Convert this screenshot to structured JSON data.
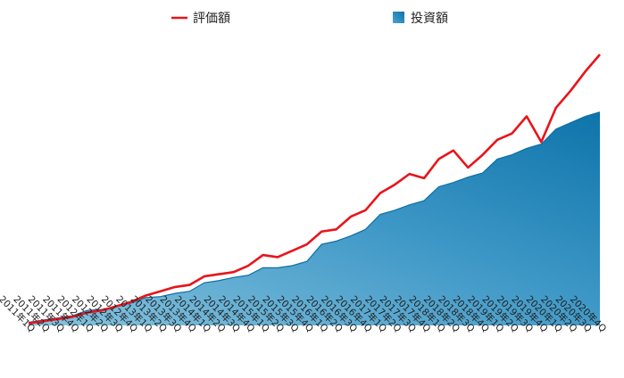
{
  "chart_data": {
    "type": "area",
    "title": "",
    "xlabel": "",
    "ylabel": "",
    "grid": false,
    "legend_position": "top-center",
    "categories": [
      "2011年1Q",
      "2011年2Q",
      "2011年3Q",
      "2011年4Q",
      "2012年1Q",
      "2012年2Q",
      "2012年3Q",
      "2012年4Q",
      "2013年1Q",
      "2013年2Q",
      "2013年3Q",
      "2013年4Q",
      "2014年1Q",
      "2014年2Q",
      "2014年3Q",
      "2014年4Q",
      "2015年1Q",
      "2015年2Q",
      "2015年3Q",
      "2015年4Q",
      "2016年1Q",
      "2016年2Q",
      "2016年3Q",
      "2016年4Q",
      "2017年1Q",
      "2017年2Q",
      "2017年3Q",
      "2017年4Q",
      "2018年1Q",
      "2018年2Q",
      "2018年3Q",
      "2018年4Q",
      "2019年1Q",
      "2019年2Q",
      "2019年3Q",
      "2019年4Q",
      "2020年1Q",
      "2020年2Q",
      "2020年3Q",
      "2020年4Q"
    ],
    "series": [
      {
        "name": "評価額",
        "type": "line",
        "color": "#e8141b",
        "values": [
          1,
          2,
          3,
          4,
          6,
          7,
          9,
          11,
          14,
          16,
          18,
          19,
          23,
          24,
          25,
          28,
          33,
          32,
          35,
          38,
          44,
          45,
          51,
          54,
          62,
          66,
          71,
          69,
          78,
          82,
          74,
          80,
          87,
          90,
          98,
          86,
          102,
          110,
          119,
          127
        ]
      },
      {
        "name": "投資額",
        "type": "area",
        "color": "#1a7fb8",
        "values": [
          1.5,
          2.5,
          3.5,
          4.5,
          7,
          7.5,
          9,
          10.5,
          13,
          13.5,
          15,
          16,
          20,
          21,
          22.5,
          23.5,
          27,
          27,
          28,
          30,
          38,
          39.5,
          42,
          45,
          52,
          54,
          56.5,
          58.5,
          65,
          67,
          69.5,
          71.5,
          78,
          80,
          83,
          85,
          92,
          95,
          98,
          100
        ]
      }
    ],
    "ylim": [
      0,
      135
    ],
    "legend": [
      {
        "name": "評価額",
        "marker": "line",
        "color": "#e8141b"
      },
      {
        "name": "投資額",
        "marker": "square",
        "color": "#1a7fb8"
      }
    ]
  }
}
